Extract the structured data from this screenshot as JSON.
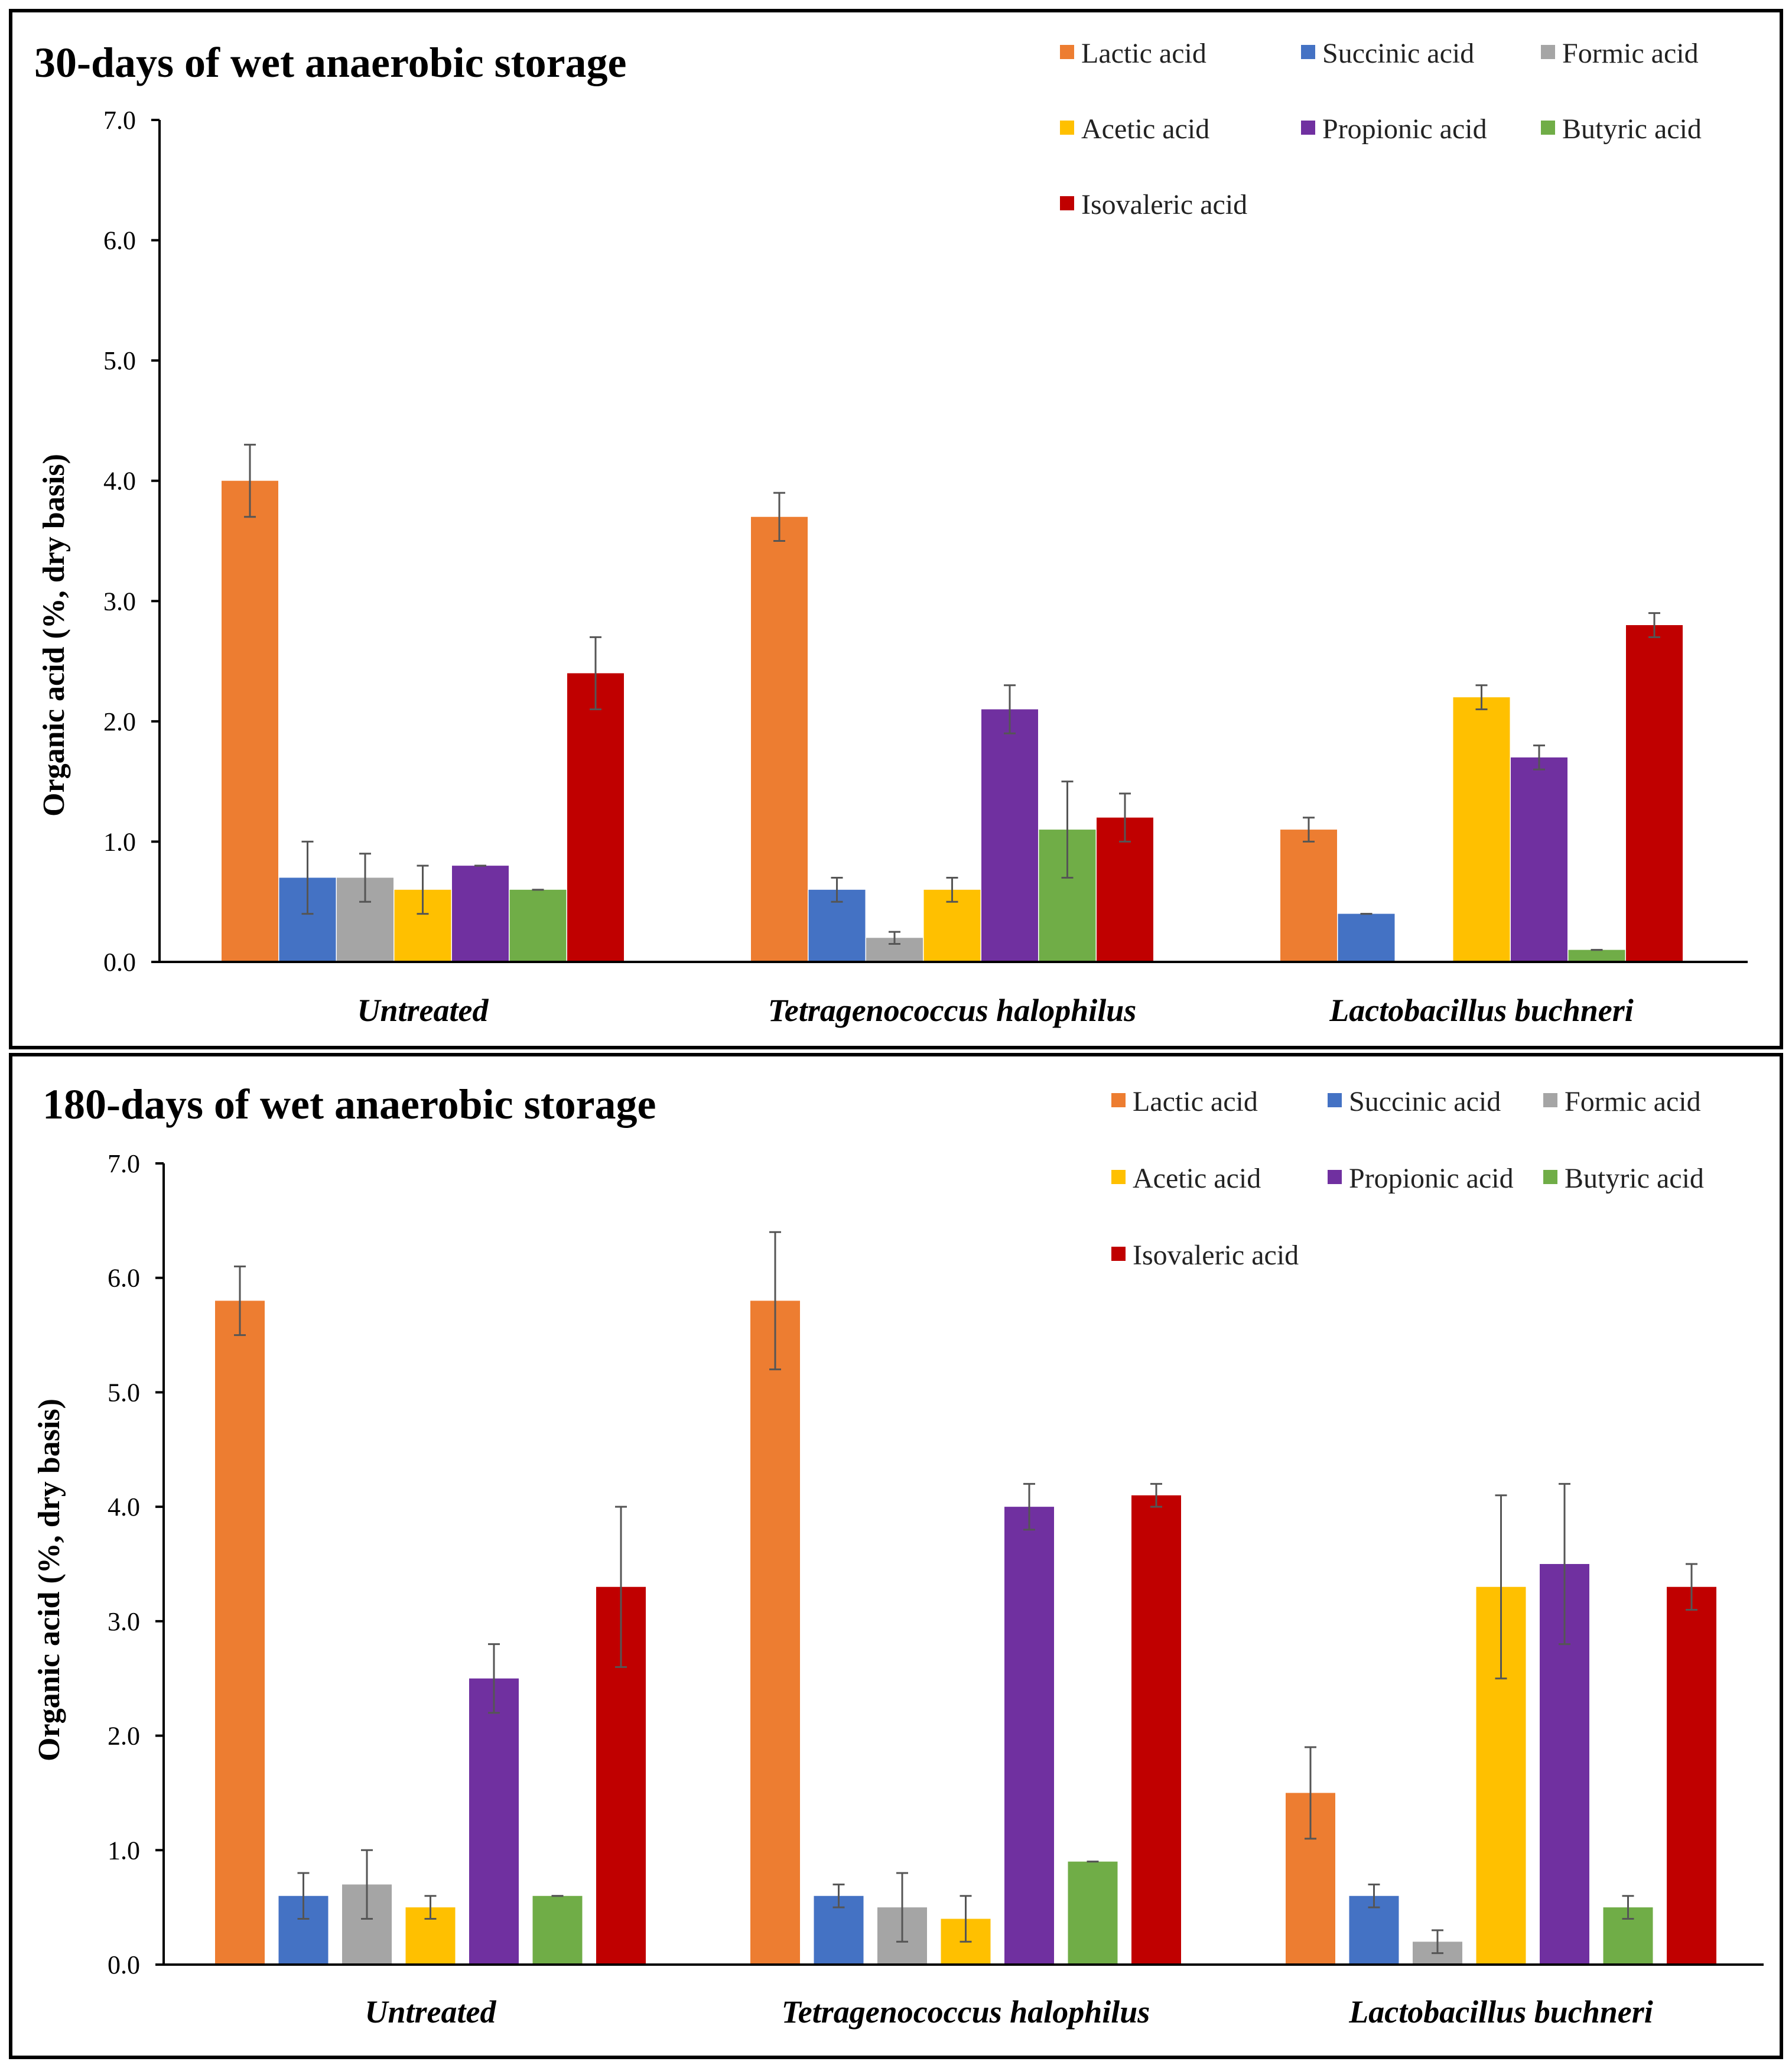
{
  "chart_data": [
    {
      "type": "bar",
      "title": "30-days of wet anaerobic storage",
      "ylabel": "Organic acid (%, dry basis)",
      "xlabel": "",
      "ylim": [
        0,
        7
      ],
      "yticks": [
        "0.0",
        "1.0",
        "2.0",
        "3.0",
        "4.0",
        "5.0",
        "6.0",
        "7.0"
      ],
      "categories": [
        "Untreated",
        "Tetragenococcus halophilus",
        "Lactobacillus buchneri"
      ],
      "legend_position": "top-right",
      "grid": false,
      "series": [
        {
          "name": "Lactic acid",
          "color": "#ED7D31",
          "values": [
            4.0,
            3.7,
            1.1
          ],
          "errors": [
            0.3,
            0.2,
            0.1
          ]
        },
        {
          "name": "Succinic acid",
          "color": "#4472C4",
          "values": [
            0.7,
            0.6,
            0.4
          ],
          "errors": [
            0.3,
            0.1,
            0.0
          ]
        },
        {
          "name": "Formic acid",
          "color": "#A5A5A5",
          "values": [
            0.7,
            0.2,
            0.0
          ],
          "errors": [
            0.2,
            0.05,
            0.0
          ]
        },
        {
          "name": "Acetic acid",
          "color": "#FFC000",
          "values": [
            0.6,
            0.6,
            2.2
          ],
          "errors": [
            0.2,
            0.1,
            0.1
          ]
        },
        {
          "name": "Propionic acid",
          "color": "#7030A0",
          "values": [
            0.8,
            2.1,
            1.7
          ],
          "errors": [
            0.0,
            0.2,
            0.1
          ]
        },
        {
          "name": "Butyric acid",
          "color": "#70AD47",
          "values": [
            0.6,
            1.1,
            0.1
          ],
          "errors": [
            0.0,
            0.4,
            0.0
          ]
        },
        {
          "name": "Isovaleric acid",
          "color": "#C00000",
          "values": [
            2.4,
            1.2,
            2.8
          ],
          "errors": [
            0.3,
            0.2,
            0.1
          ]
        }
      ]
    },
    {
      "type": "bar",
      "title": "180-days of wet anaerobic storage",
      "ylabel": "Organic acid (%, dry basis)",
      "xlabel": "",
      "ylim": [
        0,
        7
      ],
      "yticks": [
        "0.0",
        "1.0",
        "2.0",
        "3.0",
        "4.0",
        "5.0",
        "6.0",
        "7.0"
      ],
      "categories": [
        "Untreated",
        "Tetragenococcus halophilus",
        "Lactobacillus buchneri"
      ],
      "legend_position": "top-right",
      "grid": false,
      "series": [
        {
          "name": "Lactic acid",
          "color": "#ED7D31",
          "values": [
            5.8,
            5.8,
            1.5
          ],
          "errors": [
            0.3,
            0.6,
            0.4
          ]
        },
        {
          "name": "Succinic acid",
          "color": "#4472C4",
          "values": [
            0.6,
            0.6,
            0.6
          ],
          "errors": [
            0.2,
            0.1,
            0.1
          ]
        },
        {
          "name": "Formic acid",
          "color": "#A5A5A5",
          "values": [
            0.7,
            0.5,
            0.2
          ],
          "errors": [
            0.3,
            0.3,
            0.1
          ]
        },
        {
          "name": "Acetic acid",
          "color": "#FFC000",
          "values": [
            0.5,
            0.4,
            3.3
          ],
          "errors": [
            0.1,
            0.2,
            0.8
          ]
        },
        {
          "name": "Propionic acid",
          "color": "#7030A0",
          "values": [
            2.5,
            4.0,
            3.5
          ],
          "errors": [
            0.3,
            0.2,
            0.7
          ]
        },
        {
          "name": "Butyric acid",
          "color": "#70AD47",
          "values": [
            0.6,
            0.9,
            0.5
          ],
          "errors": [
            0.0,
            0.0,
            0.1
          ]
        },
        {
          "name": "Isovaleric acid",
          "color": "#C00000",
          "values": [
            3.3,
            4.1,
            3.3
          ],
          "errors": [
            0.7,
            0.1,
            0.2
          ]
        }
      ]
    }
  ]
}
